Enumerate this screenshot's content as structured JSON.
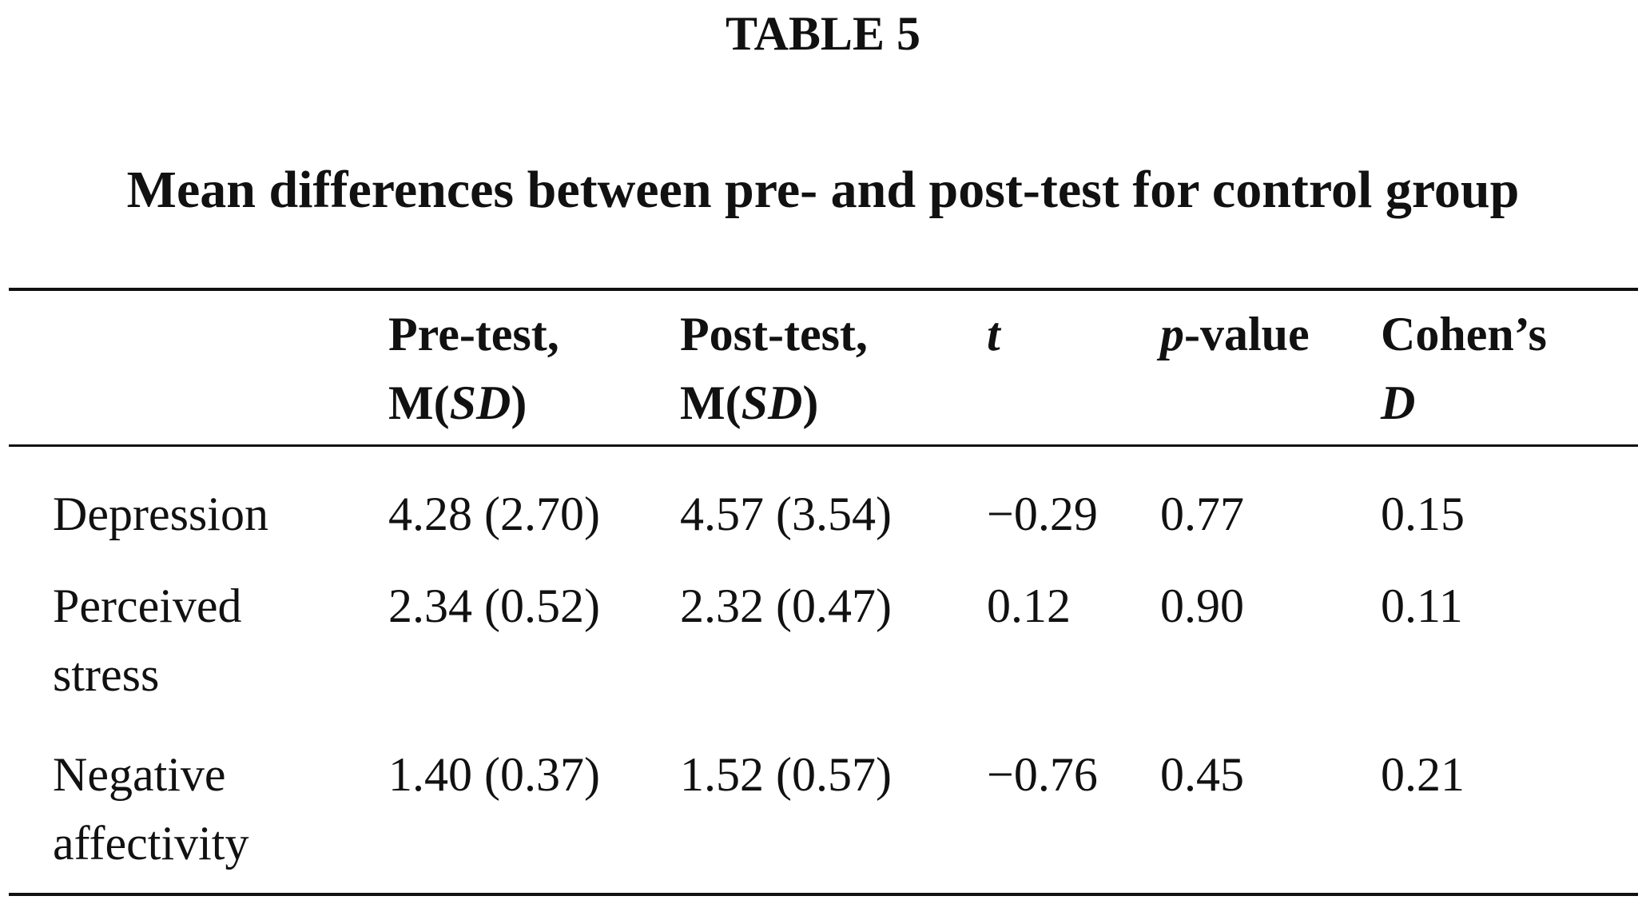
{
  "title": "TABLE 5",
  "caption": "Mean differences between pre- and post-test for control group",
  "table": {
    "header": [
      [
        "Pre-test,",
        "M(",
        "SD",
        ")"
      ],
      [
        "Post-test,",
        "M(",
        "SD",
        ")"
      ],
      [
        "t"
      ],
      [
        "p",
        "-value"
      ],
      [
        "Cohen’s",
        "D"
      ]
    ],
    "rows": [
      [
        "Depression",
        "4.28 (2.70)",
        "4.57 (3.54)",
        "−0.29",
        "0.77",
        "0.15"
      ],
      [
        "Perceived stress",
        "2.34 (0.52)",
        "2.32 (0.47)",
        "0.12",
        "0.90",
        "0.11"
      ],
      [
        "Negative affectivity",
        "1.40 (0.37)",
        "1.52 (0.57)",
        "−0.76",
        "0.45",
        "0.21"
      ]
    ]
  }
}
